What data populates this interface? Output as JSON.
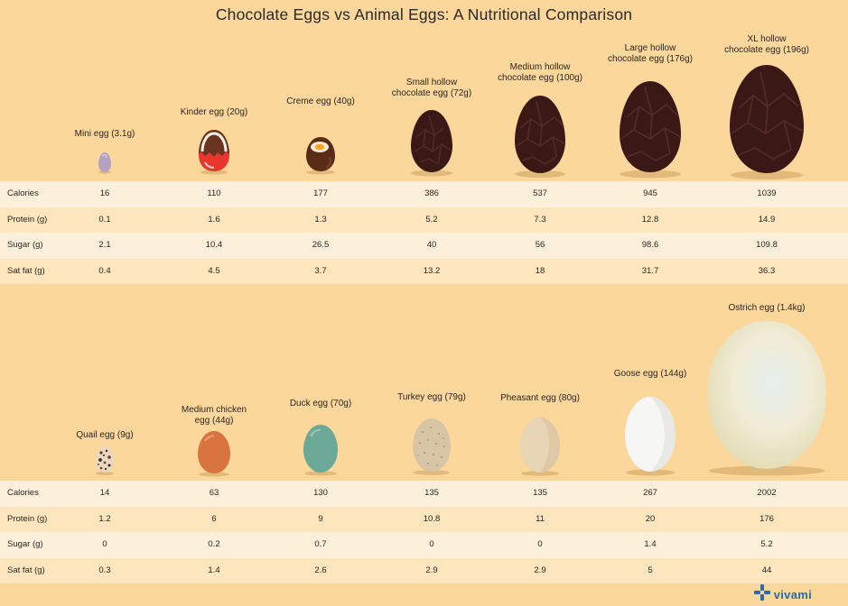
{
  "title": "Chocolate Eggs vs Animal Eggs: A Nutritional Comparison",
  "row_labels": [
    "Calories",
    "Protein (g)",
    "Sugar (g)",
    "Sat fat (g)"
  ],
  "chocolate": {
    "eggs": [
      {
        "label_lines": [
          "Mini egg (3.1g)"
        ],
        "icon": "mini-egg-icon",
        "color": "#b8a2c0"
      },
      {
        "label_lines": [
          "Kinder egg (20g)"
        ],
        "icon": "kinder-egg-icon",
        "color": "#e8342b"
      },
      {
        "label_lines": [
          "Creme egg (40g)"
        ],
        "icon": "creme-egg-icon",
        "color": "#4a2413"
      },
      {
        "label_lines": [
          "Small hollow",
          "chocolate egg (72g)"
        ],
        "icon": "chocolate-egg-icon",
        "color": "#3a1a16"
      },
      {
        "label_lines": [
          "Medium hollow",
          "chocolate egg (100g)"
        ],
        "icon": "chocolate-egg-icon",
        "color": "#3a1a16"
      },
      {
        "label_lines": [
          "Large hollow",
          "chocolate egg (176g)"
        ],
        "icon": "chocolate-egg-icon",
        "color": "#3a1a16"
      },
      {
        "label_lines": [
          "XL hollow",
          "chocolate egg (196g)"
        ],
        "icon": "chocolate-egg-icon",
        "color": "#3a1a16"
      }
    ],
    "rows": [
      [
        "16",
        "110",
        "177",
        "386",
        "537",
        "945",
        "1039"
      ],
      [
        "0.1",
        "1.6",
        "1.3",
        "5.2",
        "7.3",
        "12.8",
        "14.9"
      ],
      [
        "2.1",
        "10.4",
        "26.5",
        "40",
        "56",
        "98.6",
        "109.8"
      ],
      [
        "0.4",
        "4.5",
        "3.7",
        "13.2",
        "18",
        "31.7",
        "36.3"
      ]
    ]
  },
  "animal": {
    "eggs": [
      {
        "label_lines": [
          "Quail egg (9g)"
        ],
        "icon": "quail-egg-icon",
        "color": "#e6d6bf"
      },
      {
        "label_lines": [
          "Medium chicken",
          "egg (44g)"
        ],
        "icon": "chicken-egg-icon",
        "color": "#d6713f"
      },
      {
        "label_lines": [
          "Duck egg (70g)"
        ],
        "icon": "duck-egg-icon",
        "color": "#6aa895"
      },
      {
        "label_lines": [
          "Turkey egg (79g)"
        ],
        "icon": "turkey-egg-icon",
        "color": "#d6c3a2"
      },
      {
        "label_lines": [
          "Pheasant egg (80g)"
        ],
        "icon": "pheasant-egg-icon",
        "color": "#e6d2b2"
      },
      {
        "label_lines": [
          "Goose egg (144g)"
        ],
        "icon": "goose-egg-icon",
        "color": "#f4f4f2"
      },
      {
        "label_lines": [
          "Ostrich egg (1.4kg)"
        ],
        "icon": "ostrich-egg-icon",
        "color": "#eeeeda"
      }
    ],
    "rows": [
      [
        "14",
        "63",
        "130",
        "135",
        "135",
        "267",
        "2002"
      ],
      [
        "1.2",
        "6",
        "9",
        "10.8",
        "11",
        "20",
        "176"
      ],
      [
        "0",
        "0.2",
        "0.7",
        "0",
        "0",
        "1.4",
        "5.2"
      ],
      [
        "0.3",
        "1.4",
        "2.6",
        "2.9",
        "2.9",
        "5",
        "44"
      ]
    ]
  },
  "logo": {
    "text": "vivami",
    "icon": "vivami-logo-icon",
    "color": "#2d6aa8"
  }
}
